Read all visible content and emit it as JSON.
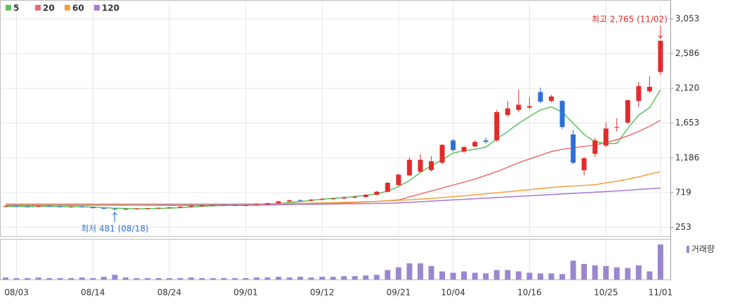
{
  "chart_data": [
    {
      "type": "candlestick",
      "x": [
        null,
        "08/03",
        null,
        null,
        null,
        null,
        null,
        null,
        "08/14",
        null,
        null,
        null,
        null,
        null,
        null,
        "08/24",
        null,
        null,
        null,
        null,
        null,
        null,
        "09/01",
        null,
        null,
        null,
        null,
        null,
        null,
        "09/12",
        null,
        null,
        null,
        null,
        null,
        null,
        "09/21",
        null,
        null,
        null,
        null,
        "10/04",
        null,
        null,
        null,
        null,
        null,
        null,
        "10/16",
        null,
        null,
        null,
        null,
        null,
        null,
        "10/25",
        null,
        null,
        null,
        null,
        "11/01"
      ],
      "open": [
        530,
        535,
        530,
        528,
        535,
        532,
        525,
        530,
        522,
        510,
        500,
        490,
        500,
        505,
        510,
        515,
        520,
        530,
        540,
        545,
        550,
        548,
        545,
        550,
        560,
        575,
        600,
        615,
        610,
        625,
        630,
        640,
        650,
        660,
        690,
        730,
        820,
        950,
        1000,
        1020,
        1120,
        1420,
        1270,
        1340,
        1420,
        1420,
        1760,
        1830,
        1860,
        2070,
        1950,
        1950,
        1500,
        1020,
        1240,
        1350,
        1590,
        1660,
        1950,
        2080,
        2340
      ],
      "high": [
        545,
        545,
        540,
        540,
        545,
        540,
        535,
        540,
        530,
        520,
        505,
        505,
        510,
        515,
        520,
        525,
        535,
        545,
        550,
        555,
        560,
        558,
        555,
        565,
        580,
        610,
        625,
        630,
        630,
        645,
        650,
        670,
        680,
        700,
        740,
        860,
        970,
        1190,
        1230,
        1210,
        1370,
        1440,
        1350,
        1420,
        1460,
        1830,
        1950,
        2100,
        2000,
        2130,
        2030,
        1960,
        1560,
        1200,
        1450,
        1660,
        1720,
        1970,
        2210,
        2280,
        2765
      ],
      "low": [
        520,
        525,
        522,
        520,
        525,
        520,
        515,
        518,
        505,
        495,
        481,
        485,
        490,
        495,
        500,
        505,
        512,
        522,
        530,
        535,
        540,
        538,
        535,
        545,
        550,
        570,
        590,
        600,
        600,
        615,
        620,
        630,
        640,
        650,
        680,
        720,
        810,
        940,
        990,
        1000,
        1100,
        1270,
        1250,
        1330,
        1380,
        1400,
        1740,
        1800,
        1840,
        1920,
        1930,
        1570,
        1100,
        950,
        1200,
        1330,
        1540,
        1640,
        1870,
        2060,
        2300
      ],
      "close": [
        535,
        530,
        528,
        535,
        532,
        525,
        530,
        522,
        510,
        500,
        490,
        500,
        505,
        510,
        515,
        520,
        530,
        540,
        545,
        550,
        548,
        545,
        550,
        560,
        575,
        600,
        615,
        610,
        625,
        630,
        640,
        650,
        660,
        690,
        730,
        850,
        960,
        1160,
        1160,
        1140,
        1360,
        1290,
        1330,
        1400,
        1400,
        1800,
        1850,
        1900,
        1880,
        1940,
        2010,
        1600,
        1120,
        1180,
        1420,
        1580,
        1600,
        1960,
        2150,
        2140,
        2760
      ],
      "up_color": "#e32b2b",
      "down_color": "#2f6fd8",
      "series": [
        {
          "name": "5",
          "color": "#5cc05c",
          "values": [
            532,
            533,
            531,
            532,
            532,
            530,
            530,
            528,
            524,
            517,
            509,
            505,
            501,
            502,
            504,
            510,
            516,
            524,
            532,
            541,
            545,
            546,
            548,
            551,
            556,
            570,
            585,
            598,
            614,
            630,
            640,
            651,
            665,
            680,
            702,
            738,
            800,
            880,
            990,
            1080,
            1160,
            1250,
            1280,
            1300,
            1330,
            1440,
            1540,
            1650,
            1740,
            1830,
            1870,
            1800,
            1650,
            1500,
            1400,
            1380,
            1380,
            1580,
            1760,
            1860,
            2100
          ]
        },
        {
          "name": "20",
          "color": "#ee6a6a",
          "values": [
            560,
            560,
            559,
            559,
            558,
            558,
            557,
            556,
            555,
            554,
            553,
            552,
            551,
            550,
            549,
            548,
            548,
            547,
            547,
            547,
            548,
            548,
            549,
            550,
            552,
            555,
            558,
            562,
            566,
            570,
            575,
            580,
            586,
            593,
            600,
            610,
            620,
            660,
            700,
            740,
            780,
            820,
            860,
            900,
            950,
            1000,
            1060,
            1120,
            1170,
            1220,
            1270,
            1300,
            1320,
            1340,
            1360,
            1390,
            1430,
            1480,
            1540,
            1610,
            1690
          ]
        },
        {
          "name": "60",
          "color": "#f3a03c",
          "values": [
            565,
            565,
            565,
            565,
            565,
            565,
            565,
            565,
            565,
            565,
            565,
            565,
            565,
            565,
            565,
            565,
            565,
            565,
            565,
            565,
            565,
            565,
            566,
            567,
            568,
            570,
            572,
            574,
            577,
            580,
            583,
            587,
            591,
            596,
            601,
            607,
            614,
            622,
            631,
            641,
            652,
            664,
            676,
            689,
            702,
            716,
            730,
            744,
            758,
            772,
            786,
            798,
            808,
            816,
            824,
            850,
            870,
            900,
            930,
            965,
            1000
          ]
        },
        {
          "name": "120",
          "color": "#a57ad6",
          "values": [
            548,
            548,
            548,
            548,
            549,
            549,
            549,
            549,
            550,
            550,
            550,
            550,
            551,
            551,
            551,
            552,
            552,
            552,
            553,
            553,
            554,
            554,
            555,
            556,
            557,
            558,
            559,
            560,
            561,
            563,
            565,
            567,
            569,
            571,
            573,
            575,
            580,
            588,
            596,
            604,
            612,
            620,
            628,
            636,
            644,
            652,
            660,
            668,
            676,
            684,
            692,
            700,
            708,
            716,
            724,
            732,
            740,
            750,
            760,
            770,
            780
          ]
        }
      ],
      "ylim": [
        125,
        3260
      ],
      "yticks": [
        253,
        719,
        {
          "value": 1186,
          "label": "1,186"
        },
        {
          "value": 1653,
          "label": "1,653"
        },
        {
          "value": 2120,
          "label": "2,120"
        },
        {
          "value": 2586,
          "label": "2,586"
        },
        {
          "value": 3053,
          "label": "3,053"
        }
      ],
      "grid": true,
      "annotations": [
        {
          "text": "최고 2,765 (11/02)",
          "color": "#e32b2b"
        },
        {
          "text": "최저 481 (08/18)",
          "color": "#2f6fd8"
        }
      ]
    },
    {
      "type": "bar",
      "name": "거래량",
      "color": "#9b87cf",
      "values": [
        3,
        2,
        2,
        3,
        2,
        2,
        2,
        3,
        2,
        4,
        7,
        3,
        2,
        2,
        2,
        2,
        2,
        3,
        2,
        2,
        2,
        2,
        2,
        3,
        3,
        4,
        3,
        4,
        3,
        4,
        4,
        5,
        5,
        6,
        7,
        14,
        18,
        24,
        24,
        20,
        12,
        10,
        12,
        10,
        9,
        14,
        14,
        12,
        10,
        9,
        9,
        8,
        28,
        23,
        21,
        20,
        18,
        17,
        21,
        12,
        52
      ]
    }
  ]
}
